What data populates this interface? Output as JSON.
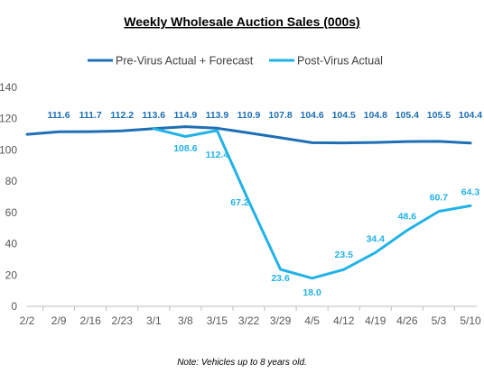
{
  "chart_data": {
    "type": "line",
    "title": "Weekly Wholesale Auction Sales (000s)",
    "categories": [
      "2/2",
      "2/9",
      "2/16",
      "2/23",
      "3/1",
      "3/8",
      "3/15",
      "3/22",
      "3/29",
      "4/5",
      "4/12",
      "4/19",
      "4/26",
      "5/3",
      "5/10"
    ],
    "series": [
      {
        "name": "Pre-Virus Actual + Forecast",
        "color": "#1f6fb5",
        "values": [
          110.0,
          111.6,
          111.7,
          112.2,
          113.6,
          114.9,
          113.9,
          110.9,
          107.8,
          104.6,
          104.5,
          104.8,
          105.4,
          105.5,
          104.4
        ],
        "labels": [
          "",
          "111.6",
          "111.7",
          "112.2",
          "113.6",
          "114.9",
          "113.9",
          "110.9",
          "107.8",
          "104.6",
          "104.5",
          "104.8",
          "105.4",
          "105.5",
          "104.4"
        ]
      },
      {
        "name": "Post-Virus Actual",
        "color": "#21b2e6",
        "values": [
          null,
          null,
          null,
          null,
          113.6,
          108.6,
          112.4,
          67.2,
          23.6,
          18.0,
          23.5,
          34.4,
          48.6,
          60.7,
          64.3
        ],
        "labels": [
          "",
          "",
          "",
          "",
          "",
          "108.6",
          "112.4",
          "67.2",
          "23.6",
          "18.0",
          "23.5",
          "34.4",
          "48.6",
          "60.7",
          "64.3"
        ]
      }
    ],
    "ylim": [
      0,
      140
    ],
    "yticks": [
      0,
      20,
      40,
      60,
      80,
      100,
      120,
      140
    ],
    "grid": false,
    "legend": "top-center",
    "note": "Note:  Vehicles up to 8 years old."
  }
}
